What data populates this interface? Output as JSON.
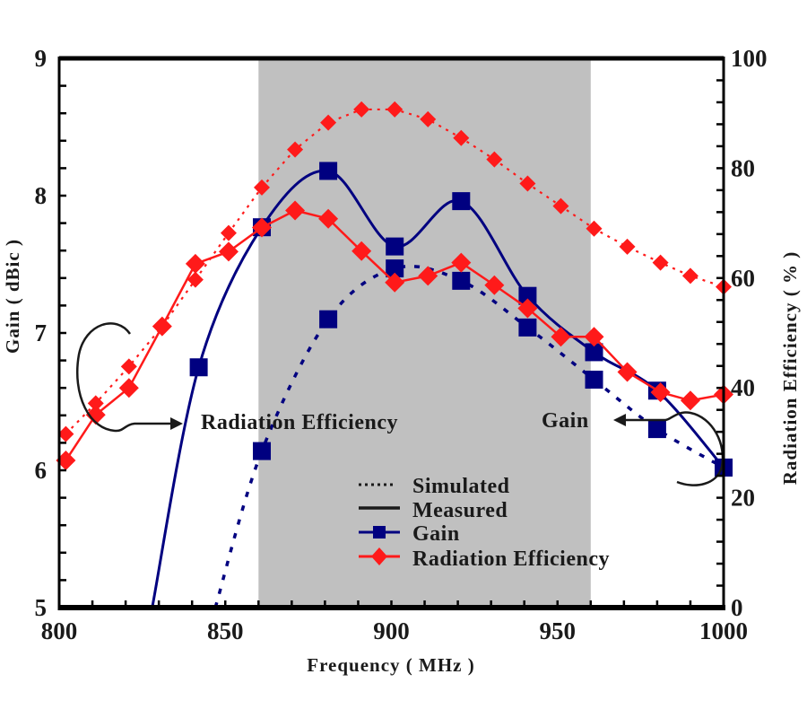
{
  "chart_data": {
    "type": "line",
    "title": "",
    "xlabel": "Frequency ( MHz )",
    "ylabel_left": "Gain ( dBic )",
    "ylabel_right": "Radiation Efficiency ( % )",
    "xlim": [
      800,
      1000
    ],
    "ylim_left": [
      5,
      9
    ],
    "ylim_right": [
      0,
      100
    ],
    "x_ticks": [
      800,
      850,
      900,
      950,
      1000
    ],
    "x_tick_labels": [
      "800",
      "850",
      "900",
      "950",
      "1000"
    ],
    "y_left_ticks": [
      5,
      6,
      7,
      8,
      9
    ],
    "y_left_tick_labels": [
      "5",
      "6",
      "7",
      "8",
      "9"
    ],
    "y_right_ticks": [
      0,
      20,
      40,
      60,
      80,
      100
    ],
    "y_right_tick_labels": [
      "0",
      "20",
      "40",
      "60",
      "80",
      "100"
    ],
    "grid": false,
    "shaded_band": {
      "x_range": [
        860,
        960
      ],
      "color": "#c0c0c0"
    },
    "series": [
      {
        "name": "Gain (Measured)",
        "axis": "left",
        "style": "solid",
        "marker": "square",
        "color": "#000080",
        "curve_start": [
          828,
          5.0
        ],
        "x": [
          842,
          861,
          881,
          901,
          921,
          941,
          961,
          980,
          1000
        ],
        "values": [
          6.75,
          7.77,
          8.18,
          7.63,
          7.96,
          7.27,
          6.86,
          6.58,
          6.02
        ]
      },
      {
        "name": "Gain (Simulated)",
        "axis": "left",
        "style": "dotted",
        "marker": "square",
        "color": "#000080",
        "curve_start": [
          847,
          5.0
        ],
        "x": [
          861,
          881,
          901,
          921,
          941,
          961,
          980,
          1000
        ],
        "values": [
          6.14,
          7.1,
          7.47,
          7.38,
          7.04,
          6.66,
          6.3,
          6.02
        ]
      },
      {
        "name": "Radiation Efficiency (Measured)",
        "axis": "right",
        "style": "solid",
        "marker": "diamond",
        "color": "#ff1a1a",
        "x": [
          802,
          811,
          821,
          831,
          841,
          851,
          861,
          871,
          881,
          891,
          901,
          911,
          921,
          931,
          941,
          951,
          961,
          971,
          981,
          990,
          1000
        ],
        "values": [
          26.8,
          35.1,
          40.0,
          51.2,
          62.6,
          64.8,
          69.2,
          72.3,
          70.8,
          64.9,
          59.2,
          60.4,
          62.8,
          58.7,
          54.5,
          49.3,
          49.3,
          42.9,
          39.2,
          37.7,
          38.8
        ]
      },
      {
        "name": "Radiation Efficiency (Simulated)",
        "axis": "right",
        "style": "dotted",
        "marker": "diamond",
        "color": "#ff1a1a",
        "x": [
          802,
          811,
          821,
          831,
          841,
          851,
          861,
          871,
          881,
          891,
          901,
          911,
          921,
          931,
          941,
          951,
          961,
          971,
          981,
          990,
          1000
        ],
        "values": [
          31.6,
          37.2,
          43.9,
          51.2,
          59.7,
          68.2,
          76.5,
          83.4,
          88.3,
          90.7,
          90.7,
          88.9,
          85.5,
          81.6,
          77.2,
          73.1,
          69.0,
          65.7,
          62.8,
          60.4,
          58.4
        ]
      }
    ],
    "annotations": [
      {
        "text": "Radiation Efficiency",
        "points_to": "right axis"
      },
      {
        "text": "Gain",
        "points_to": "left axis"
      }
    ],
    "legend": {
      "placement": "bottom-center",
      "entries": [
        {
          "label": "Simulated",
          "line": "dotted",
          "color": "#1a1a1a"
        },
        {
          "label": "Measured",
          "line": "solid",
          "color": "#1a1a1a"
        },
        {
          "label": "Gain",
          "line": "solid",
          "marker": "square",
          "color": "#000080"
        },
        {
          "label": "Radiation Efficiency",
          "line": "solid",
          "marker": "diamond",
          "color": "#ff1a1a"
        }
      ]
    }
  }
}
